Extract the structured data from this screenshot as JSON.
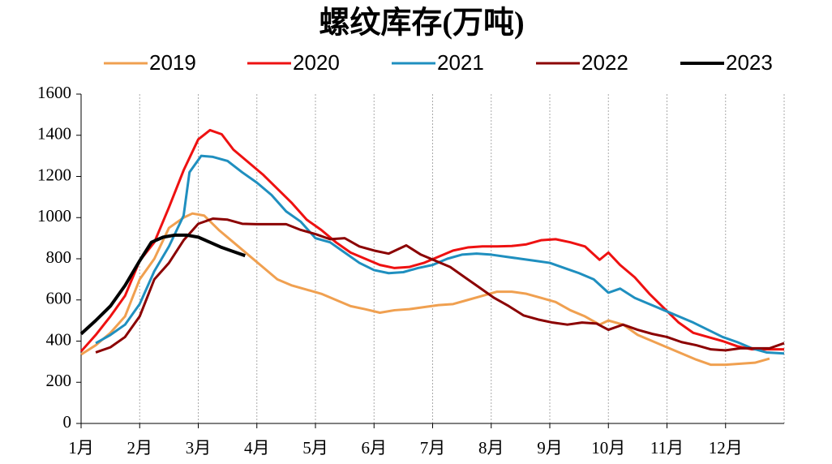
{
  "chart_data": {
    "type": "line",
    "title": "螺纹库存(万吨)",
    "xlim": [
      1,
      13
    ],
    "ylim": [
      0,
      1600
    ],
    "yticks": [
      0,
      200,
      400,
      600,
      800,
      1000,
      1200,
      1400,
      1600
    ],
    "xticks": [
      {
        "value": 1,
        "label": "1月"
      },
      {
        "value": 2,
        "label": "2月"
      },
      {
        "value": 3,
        "label": "3月"
      },
      {
        "value": 4,
        "label": "4月"
      },
      {
        "value": 5,
        "label": "5月"
      },
      {
        "value": 6,
        "label": "6月"
      },
      {
        "value": 7,
        "label": "7月"
      },
      {
        "value": 8,
        "label": "8月"
      },
      {
        "value": 9,
        "label": "9月"
      },
      {
        "value": 10,
        "label": "10月"
      },
      {
        "value": 11,
        "label": "11月"
      },
      {
        "value": 12,
        "label": "12月"
      }
    ],
    "grid": true,
    "legend": "top",
    "series": [
      {
        "name": "2019",
        "color": "#f0a050",
        "width": 3,
        "x": [
          1.0,
          1.25,
          1.5,
          1.75,
          2.0,
          2.25,
          2.5,
          2.75,
          2.9,
          3.1,
          3.35,
          3.6,
          3.85,
          4.1,
          4.35,
          4.6,
          4.85,
          5.1,
          5.35,
          5.6,
          5.85,
          6.1,
          6.35,
          6.6,
          6.85,
          7.1,
          7.35,
          7.6,
          7.85,
          8.1,
          8.35,
          8.6,
          8.85,
          9.1,
          9.35,
          9.6,
          9.85,
          10.0,
          10.25,
          10.5,
          10.75,
          11.0,
          11.25,
          11.5,
          11.75,
          12.0,
          12.25,
          12.5,
          12.75
        ],
        "values": [
          335,
          380,
          440,
          520,
          700,
          800,
          950,
          1000,
          1020,
          1010,
          940,
          880,
          820,
          760,
          700,
          670,
          650,
          630,
          600,
          570,
          555,
          538,
          550,
          555,
          565,
          575,
          580,
          600,
          620,
          640,
          640,
          630,
          610,
          590,
          550,
          520,
          480,
          500,
          480,
          430,
          400,
          370,
          340,
          310,
          285,
          285,
          290,
          295,
          315
        ]
      },
      {
        "name": "2020",
        "color": "#ee1111",
        "width": 3,
        "x": [
          1.0,
          1.25,
          1.5,
          1.75,
          2.0,
          2.25,
          2.5,
          2.75,
          3.0,
          3.2,
          3.4,
          3.6,
          3.85,
          4.1,
          4.35,
          4.6,
          4.85,
          5.1,
          5.35,
          5.6,
          5.85,
          6.1,
          6.35,
          6.6,
          6.85,
          7.1,
          7.35,
          7.6,
          7.85,
          8.1,
          8.35,
          8.6,
          8.85,
          9.1,
          9.35,
          9.6,
          9.85,
          10.0,
          10.2,
          10.45,
          10.7,
          10.95,
          11.2,
          11.45,
          11.7,
          11.95,
          12.2,
          12.45,
          12.7,
          13.0
        ],
        "values": [
          350,
          430,
          520,
          620,
          790,
          880,
          1050,
          1230,
          1380,
          1425,
          1405,
          1330,
          1270,
          1210,
          1140,
          1070,
          990,
          940,
          880,
          830,
          800,
          770,
          755,
          760,
          780,
          810,
          840,
          855,
          860,
          860,
          862,
          870,
          890,
          895,
          880,
          860,
          795,
          830,
          770,
          710,
          630,
          560,
          490,
          440,
          420,
          400,
          375,
          360,
          360,
          360
        ]
      },
      {
        "name": "2021",
        "color": "#1f8fbf",
        "width": 3,
        "x": [
          1.25,
          1.5,
          1.75,
          2.0,
          2.25,
          2.5,
          2.75,
          2.85,
          3.05,
          3.25,
          3.5,
          3.75,
          4.0,
          4.25,
          4.5,
          4.75,
          5.0,
          5.25,
          5.5,
          5.75,
          6.0,
          6.25,
          6.5,
          6.75,
          7.0,
          7.25,
          7.5,
          7.75,
          8.0,
          8.25,
          8.5,
          8.75,
          9.0,
          9.25,
          9.5,
          9.75,
          10.0,
          10.2,
          10.45,
          10.7,
          10.95,
          11.2,
          11.45,
          11.7,
          11.95,
          12.2,
          12.45,
          12.7,
          13.0
        ],
        "values": [
          390,
          430,
          480,
          580,
          740,
          860,
          1010,
          1220,
          1300,
          1295,
          1275,
          1220,
          1170,
          1110,
          1030,
          980,
          900,
          880,
          830,
          780,
          745,
          730,
          735,
          755,
          770,
          800,
          820,
          825,
          820,
          810,
          800,
          790,
          780,
          755,
          730,
          700,
          635,
          655,
          610,
          580,
          550,
          520,
          490,
          455,
          420,
          395,
          365,
          345,
          340
        ]
      },
      {
        "name": "2022",
        "color": "#8b0000",
        "width": 3,
        "x": [
          1.25,
          1.5,
          1.75,
          2.0,
          2.25,
          2.5,
          2.75,
          3.0,
          3.25,
          3.5,
          3.75,
          4.0,
          4.25,
          4.5,
          4.75,
          5.0,
          5.25,
          5.5,
          5.75,
          6.0,
          6.25,
          6.55,
          6.8,
          7.05,
          7.3,
          7.55,
          7.8,
          8.05,
          8.3,
          8.55,
          8.8,
          9.05,
          9.3,
          9.55,
          9.8,
          10.0,
          10.25,
          10.5,
          10.75,
          11.0,
          11.25,
          11.5,
          11.75,
          12.0,
          12.25,
          12.5,
          12.75,
          13.0
        ],
        "values": [
          345,
          370,
          420,
          520,
          700,
          780,
          890,
          970,
          995,
          990,
          970,
          968,
          968,
          968,
          940,
          920,
          895,
          900,
          860,
          840,
          825,
          865,
          820,
          790,
          760,
          710,
          660,
          610,
          570,
          525,
          505,
          490,
          480,
          490,
          485,
          455,
          480,
          455,
          435,
          420,
          395,
          380,
          360,
          355,
          365,
          365,
          365,
          390
        ]
      },
      {
        "name": "2023",
        "color": "#000000",
        "width": 4,
        "x": [
          1.0,
          1.25,
          1.5,
          1.75,
          2.0,
          2.2,
          2.4,
          2.6,
          2.8,
          3.0,
          3.2,
          3.4,
          3.6,
          3.8
        ],
        "values": [
          435,
          500,
          570,
          670,
          790,
          880,
          905,
          915,
          915,
          905,
          880,
          855,
          835,
          815
        ]
      }
    ]
  }
}
